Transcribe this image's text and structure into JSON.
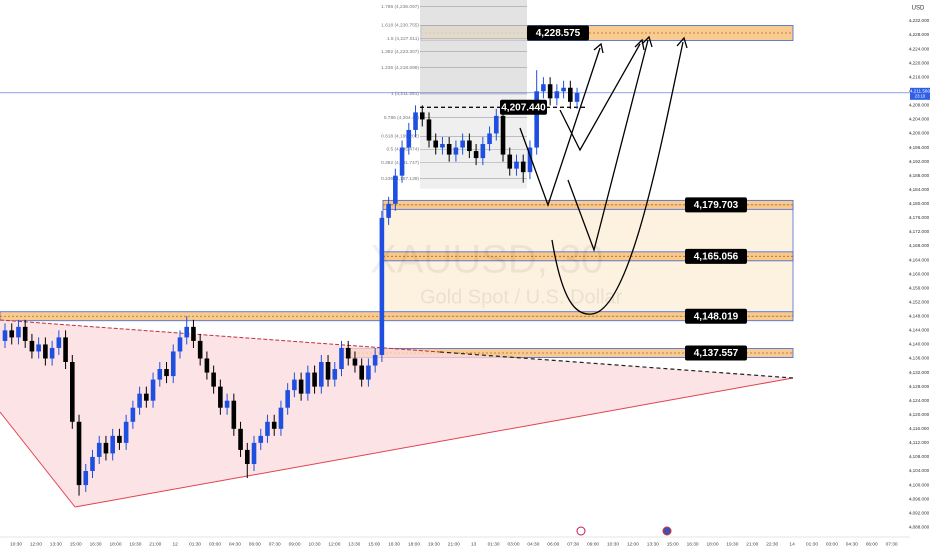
{
  "chart_data": {
    "type": "candlestick",
    "symbol_watermark": "XAUUSD, 30",
    "description_watermark": "Gold Spot / U.S. Dollar",
    "currency": "USD",
    "up_color": "#1f4fe0",
    "down_color": "#000000",
    "zone_color": "#f8c27e",
    "open": [
      4141,
      4144,
      4142,
      4145,
      4141,
      4138,
      4140,
      4136,
      4139,
      4142,
      4135,
      4118,
      4100,
      4104,
      4108,
      4112,
      4109,
      4114,
      4112,
      4118,
      4122,
      4126,
      4124,
      4130,
      4133,
      4131,
      4138,
      4142,
      4145,
      4141,
      4136,
      4132,
      4128,
      4122,
      4124,
      4116,
      4110,
      4106,
      4112,
      4114,
      4118,
      4116,
      4122,
      4127,
      4130,
      4126,
      4132,
      4128,
      4135,
      4130,
      4133,
      4139,
      4136,
      4134,
      4130,
      4134,
      4137,
      4176,
      4180,
      4188,
      4196,
      4201,
      4206,
      4204,
      4198,
      4196,
      4197,
      4194,
      4196,
      4198,
      4195,
      4193,
      4197,
      4200,
      4205,
      4194,
      4190,
      4192,
      4189,
      4196,
      4212,
      4214,
      4210,
      4212,
      4213,
      4209
    ],
    "high": [
      4146,
      4146,
      4147,
      4147,
      4143,
      4142,
      4142,
      4141,
      4144,
      4144,
      4137,
      4120,
      4106,
      4110,
      4114,
      4114,
      4116,
      4116,
      4120,
      4124,
      4128,
      4128,
      4132,
      4135,
      4135,
      4140,
      4144,
      4148,
      4147,
      4143,
      4138,
      4134,
      4130,
      4126,
      4126,
      4118,
      4112,
      4114,
      4116,
      4120,
      4120,
      4124,
      4129,
      4132,
      4132,
      4134,
      4134,
      4137,
      4137,
      4135,
      4141,
      4141,
      4138,
      4136,
      4136,
      4139,
      4178,
      4182,
      4190,
      4198,
      4203,
      4208,
      4208,
      4206,
      4200,
      4199,
      4199,
      4198,
      4200,
      4200,
      4197,
      4199,
      4202,
      4207,
      4207,
      4196,
      4194,
      4194,
      4198,
      4218,
      4216,
      4216,
      4214,
      4215,
      4215,
      4213
    ],
    "low": [
      4139,
      4140,
      4140,
      4139,
      4136,
      4136,
      4134,
      4134,
      4137,
      4133,
      4116,
      4097,
      4098,
      4102,
      4106,
      4107,
      4107,
      4110,
      4110,
      4116,
      4120,
      4122,
      4122,
      4128,
      4129,
      4129,
      4136,
      4140,
      4139,
      4134,
      4130,
      4126,
      4120,
      4120,
      4114,
      4108,
      4102,
      4104,
      4110,
      4112,
      4114,
      4114,
      4120,
      4125,
      4124,
      4124,
      4126,
      4126,
      4128,
      4128,
      4131,
      4134,
      4132,
      4128,
      4128,
      4132,
      4135,
      4174,
      4178,
      4186,
      4194,
      4199,
      4202,
      4196,
      4194,
      4194,
      4192,
      4192,
      4194,
      4193,
      4191,
      4191,
      4195,
      4198,
      4192,
      4188,
      4188,
      4186,
      4187,
      4194,
      4210,
      4208,
      4208,
      4210,
      4207,
      4207
    ],
    "close": [
      4144,
      4142,
      4145,
      4141,
      4138,
      4140,
      4136,
      4139,
      4142,
      4135,
      4118,
      4100,
      4104,
      4108,
      4112,
      4109,
      4114,
      4112,
      4118,
      4122,
      4126,
      4124,
      4130,
      4133,
      4131,
      4138,
      4142,
      4145,
      4141,
      4136,
      4132,
      4128,
      4122,
      4124,
      4116,
      4110,
      4106,
      4112,
      4114,
      4118,
      4116,
      4122,
      4127,
      4130,
      4126,
      4132,
      4128,
      4135,
      4130,
      4133,
      4139,
      4136,
      4134,
      4130,
      4134,
      4137,
      4176,
      4180,
      4188,
      4196,
      4201,
      4206,
      4204,
      4198,
      4196,
      4197,
      4194,
      4196,
      4198,
      4195,
      4193,
      4197,
      4200,
      4205,
      4194,
      4190,
      4192,
      4189,
      4196,
      4212,
      4214,
      4210,
      4212,
      4213,
      4209,
      4211.56
    ],
    "ylim": [
      4084.378,
      4237.961
    ],
    "yticks": [
      {
        "value": 4088,
        "label": "4,088.000"
      },
      {
        "value": 4092,
        "label": "4,092.000"
      },
      {
        "value": 4096,
        "label": "4,096.000"
      },
      {
        "value": 4100,
        "label": "4,100.000"
      },
      {
        "value": 4104,
        "label": "4,104.000"
      },
      {
        "value": 4108,
        "label": "4,108.000"
      },
      {
        "value": 4112,
        "label": "4,112.000"
      },
      {
        "value": 4116,
        "label": "4,116.000"
      },
      {
        "value": 4120,
        "label": "4,120.000"
      },
      {
        "value": 4124,
        "label": "4,124.000"
      },
      {
        "value": 4128,
        "label": "4,128.000"
      },
      {
        "value": 4132,
        "label": "4,132.000"
      },
      {
        "value": 4136,
        "label": "4,136.000"
      },
      {
        "value": 4140,
        "label": "4,140.000"
      },
      {
        "value": 4144,
        "label": "4,144.000"
      },
      {
        "value": 4148,
        "label": "4,148.000"
      },
      {
        "value": 4152,
        "label": "4,152.000"
      },
      {
        "value": 4156,
        "label": "4,156.000"
      },
      {
        "value": 4160,
        "label": "4,160.000"
      },
      {
        "value": 4164,
        "label": "4,164.000"
      },
      {
        "value": 4168,
        "label": "4,168.000"
      },
      {
        "value": 4172,
        "label": "4,172.000"
      },
      {
        "value": 4176,
        "label": "4,176.000"
      },
      {
        "value": 4180,
        "label": "4,180.000"
      },
      {
        "value": 4184,
        "label": "4,184.000"
      },
      {
        "value": 4188,
        "label": "4,188.000"
      },
      {
        "value": 4192,
        "label": "4,192.000"
      },
      {
        "value": 4196,
        "label": "4,196.000"
      },
      {
        "value": 4200,
        "label": "4,200.000"
      },
      {
        "value": 4204,
        "label": "4,204.000"
      },
      {
        "value": 4208,
        "label": "4,208.000"
      },
      {
        "value": 4212,
        "label": "4,212.000"
      },
      {
        "value": 4216,
        "label": "4,216.000"
      },
      {
        "value": 4220,
        "label": "4,220.000"
      },
      {
        "value": 4224,
        "label": "4,224.000"
      },
      {
        "value": 4228,
        "label": "4,228.000"
      },
      {
        "value": 4232,
        "label": "4,232.000"
      }
    ],
    "x_labels": [
      "10:30",
      "12:00",
      "13:30",
      "15:00",
      "16:30",
      "18:00",
      "19:30",
      "21:00",
      "12",
      "01:30",
      "03:00",
      "04:30",
      "06:00",
      "07:30",
      "09:00",
      "10:30",
      "12:00",
      "13:30",
      "15:00",
      "16:30",
      "18:00",
      "19:30",
      "21:00",
      "13",
      "01:30",
      "03:00",
      "04:30",
      "06:00",
      "07:30",
      "09:00",
      "10:30",
      "12:00",
      "13:30",
      "15:00",
      "16:30",
      "18:00",
      "19:30",
      "21:00",
      "22:30",
      "14",
      "01:30",
      "03:00",
      "04:30",
      "06:00",
      "07:30"
    ],
    "current_price": {
      "value": 4211.56,
      "label": "4,211.560"
    },
    "countdown": "23:10",
    "entry_level": {
      "value": 4207.44,
      "label": "4,207.440"
    },
    "levels": [
      {
        "value": 4228.575,
        "label": "4,228.575"
      },
      {
        "value": 4179.703,
        "label": "4,179.703"
      },
      {
        "value": 4165.056,
        "label": "4,165.056"
      },
      {
        "value": 4148.019,
        "label": "4,148.019"
      },
      {
        "value": 4137.557,
        "label": "4,137.557"
      }
    ],
    "fib_levels": [
      {
        "value": 4236.097,
        "label": "1.786 (4,236.097)"
      },
      {
        "value": 4230.755,
        "label": "1.618 (4,230.755)"
      },
      {
        "value": 4227.011,
        "label": "1.5 (4,227.011)"
      },
      {
        "value": 4223.307,
        "label": "1.382 (4,223.307)"
      },
      {
        "value": 4218.699,
        "label": "1.236 (4,218.699)"
      },
      {
        "value": 4211.251,
        "label": "1 (4,211.251)"
      },
      {
        "value": 4204.49,
        "label": "0.786 (4,204.49)"
      },
      {
        "value": 4199.202,
        "label": "0.618 (4,199.202)"
      },
      {
        "value": 4195.474,
        "label": "0.5 (4,195.474)"
      },
      {
        "value": 4191.747,
        "label": "0.382 (4,191.747)"
      },
      {
        "value": 4187.139,
        "label": "0.236 (4,187.139)"
      }
    ]
  }
}
